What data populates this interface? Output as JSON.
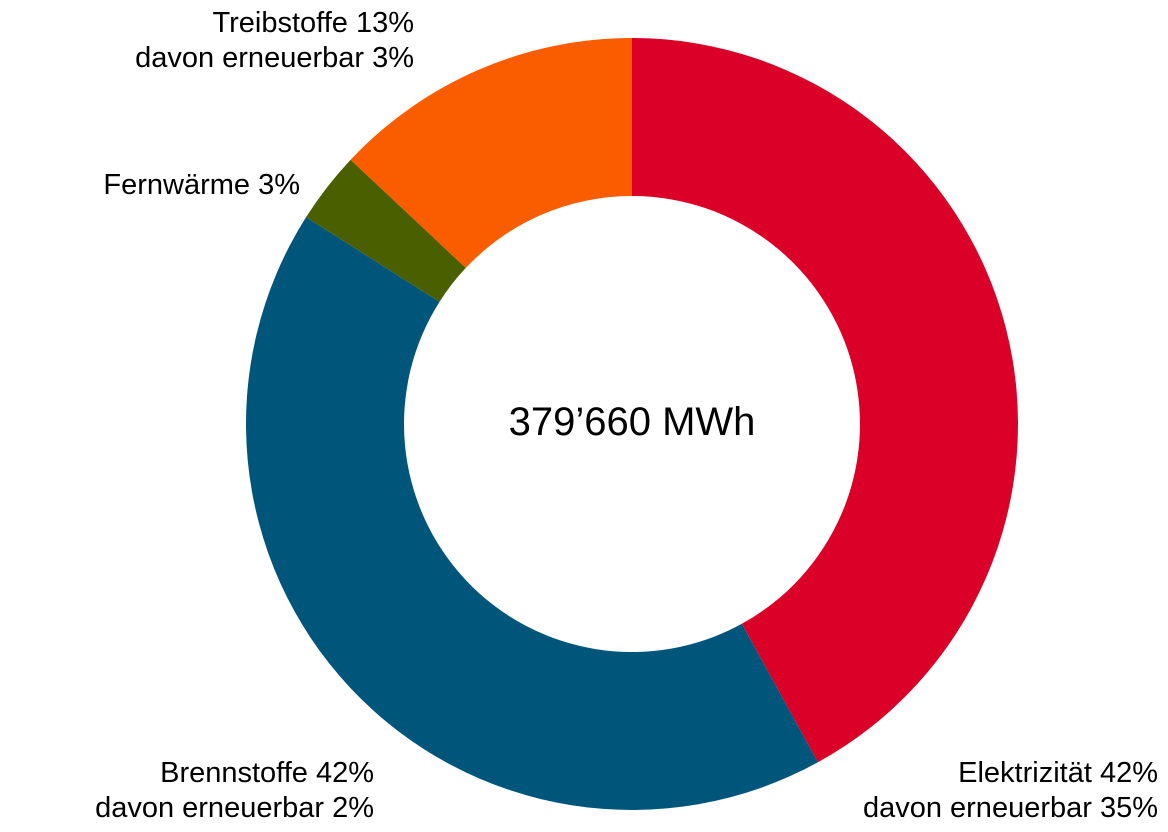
{
  "chart_data": {
    "type": "pie",
    "donut": true,
    "center_label": "379’660 MWh",
    "slices": [
      {
        "name": "Elektrizität 42%",
        "value": 42,
        "sub": "davon erneuerbar 35%",
        "color": "#DA0027"
      },
      {
        "name": "Brennstoffe 42%",
        "value": 42,
        "sub": "davon erneuerbar 2%",
        "color": "#00557A"
      },
      {
        "name": "Fernwärme 3%",
        "value": 3,
        "color": "#4A6000"
      },
      {
        "name": "Treibstoffe 13%",
        "value": 13,
        "sub": "davon erneuerbar 3%",
        "color": "#FA5C00"
      }
    ],
    "legend": "none"
  }
}
